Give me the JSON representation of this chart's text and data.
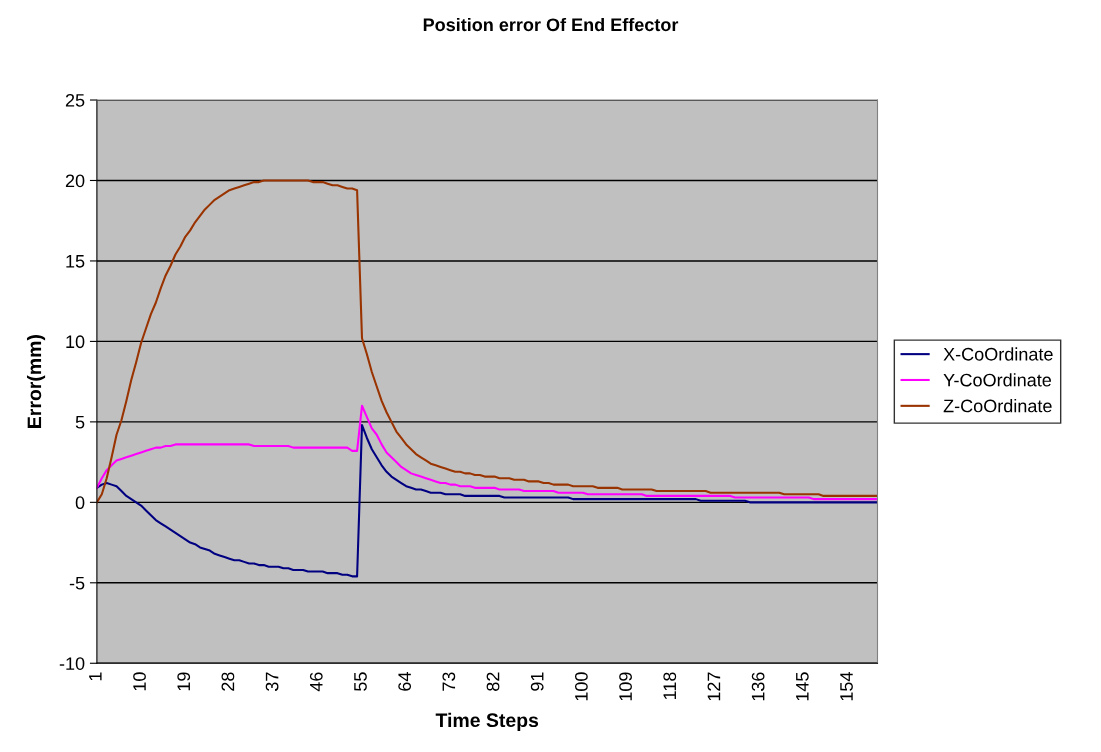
{
  "chart_data": {
    "type": "line",
    "title": "Position error Of End Effector",
    "xlabel": "Time Steps",
    "ylabel": "Error(mm)",
    "categories": [
      "1",
      null,
      null,
      null,
      null,
      null,
      null,
      null,
      null,
      "10",
      null,
      null,
      null,
      null,
      null,
      null,
      null,
      null,
      "19",
      null,
      null,
      null,
      null,
      null,
      null,
      null,
      null,
      "28",
      null,
      null,
      null,
      null,
      null,
      null,
      null,
      null,
      "37",
      null,
      null,
      null,
      null,
      null,
      null,
      null,
      null,
      "46",
      null,
      null,
      null,
      null,
      null,
      null,
      null,
      null,
      "55",
      null,
      null,
      null,
      null,
      null,
      null,
      null,
      null,
      "64",
      null,
      null,
      null,
      null,
      null,
      null,
      null,
      null,
      "73",
      null,
      null,
      null,
      null,
      null,
      null,
      null,
      null,
      "82",
      null,
      null,
      null,
      null,
      null,
      null,
      null,
      null,
      "91",
      null,
      null,
      null,
      null,
      null,
      null,
      null,
      null,
      "100",
      null,
      null,
      null,
      null,
      null,
      null,
      null,
      null,
      "109",
      null,
      null,
      null,
      null,
      null,
      null,
      null,
      null,
      "118",
      null,
      null,
      null,
      null,
      null,
      null,
      null,
      null,
      "127",
      null,
      null,
      null,
      null,
      null,
      null,
      null,
      null,
      "136",
      null,
      null,
      null,
      null,
      null,
      null,
      null,
      null,
      "145",
      null,
      null,
      null,
      null,
      null,
      null,
      null,
      null,
      "154",
      null,
      null,
      null,
      null,
      null,
      null
    ],
    "series": [
      {
        "name": "X-CoOrdinate",
        "color": "#000080",
        "values": [
          0.9,
          1.1,
          1.2,
          1.1,
          1.0,
          0.7,
          0.4,
          0.2,
          0,
          -0.2,
          -0.5,
          -0.8,
          -1.1,
          -1.3,
          -1.5,
          -1.7,
          -1.9,
          -2.1,
          -2.3,
          -2.5,
          -2.6,
          -2.8,
          -2.9,
          -3.0,
          -3.2,
          -3.3,
          -3.4,
          -3.5,
          -3.6,
          -3.6,
          -3.7,
          -3.8,
          -3.8,
          -3.9,
          -3.9,
          -4.0,
          -4.0,
          -4.0,
          -4.1,
          -4.1,
          -4.2,
          -4.2,
          -4.2,
          -4.3,
          -4.3,
          -4.3,
          -4.3,
          -4.4,
          -4.4,
          -4.4,
          -4.5,
          -4.5,
          -4.6,
          -4.6,
          4.8,
          4.0,
          3.3,
          2.8,
          2.3,
          1.9,
          1.6,
          1.4,
          1.2,
          1.0,
          0.9,
          0.8,
          0.8,
          0.7,
          0.6,
          0.6,
          0.6,
          0.5,
          0.5,
          0.5,
          0.5,
          0.4,
          0.4,
          0.4,
          0.4,
          0.4,
          0.4,
          0.4,
          0.4,
          0.3,
          0.3,
          0.3,
          0.3,
          0.3,
          0.3,
          0.3,
          0.3,
          0.3,
          0.3,
          0.3,
          0.3,
          0.3,
          0.3,
          0.2,
          0.2,
          0.2,
          0.2,
          0.2,
          0.2,
          0.2,
          0.2,
          0.2,
          0.2,
          0.2,
          0.2,
          0.2,
          0.2,
          0.2,
          0.2,
          0.2,
          0.2,
          0.2,
          0.2,
          0.2,
          0.2,
          0.2,
          0.2,
          0.2,
          0.2,
          0.1,
          0.1,
          0.1,
          0.1,
          0.1,
          0.1,
          0.1,
          0.1,
          0.1,
          0.1,
          0,
          0,
          0,
          0,
          0,
          0,
          0,
          0,
          0,
          0,
          0,
          0,
          0,
          0,
          0,
          0,
          0,
          0,
          0,
          0,
          0,
          0,
          0,
          0,
          0,
          0,
          0
        ]
      },
      {
        "name": "Y-CoOrdinate",
        "color": "#ff00ff",
        "values": [
          0.9,
          1.5,
          2.0,
          2.3,
          2.6,
          2.7,
          2.8,
          2.9,
          3.0,
          3.1,
          3.2,
          3.3,
          3.4,
          3.4,
          3.5,
          3.5,
          3.6,
          3.6,
          3.6,
          3.6,
          3.6,
          3.6,
          3.6,
          3.6,
          3.6,
          3.6,
          3.6,
          3.6,
          3.6,
          3.6,
          3.6,
          3.6,
          3.5,
          3.5,
          3.5,
          3.5,
          3.5,
          3.5,
          3.5,
          3.5,
          3.4,
          3.4,
          3.4,
          3.4,
          3.4,
          3.4,
          3.4,
          3.4,
          3.4,
          3.4,
          3.4,
          3.4,
          3.2,
          3.2,
          6.0,
          5.3,
          4.6,
          4.2,
          3.6,
          3.1,
          2.8,
          2.5,
          2.2,
          2.0,
          1.8,
          1.7,
          1.6,
          1.5,
          1.4,
          1.3,
          1.2,
          1.2,
          1.1,
          1.1,
          1.0,
          1.0,
          1.0,
          0.9,
          0.9,
          0.9,
          0.9,
          0.9,
          0.8,
          0.8,
          0.8,
          0.8,
          0.8,
          0.7,
          0.7,
          0.7,
          0.7,
          0.7,
          0.7,
          0.7,
          0.6,
          0.6,
          0.6,
          0.6,
          0.6,
          0.6,
          0.5,
          0.5,
          0.5,
          0.5,
          0.5,
          0.5,
          0.5,
          0.5,
          0.5,
          0.5,
          0.5,
          0.5,
          0.4,
          0.4,
          0.4,
          0.4,
          0.4,
          0.4,
          0.4,
          0.4,
          0.4,
          0.4,
          0.4,
          0.4,
          0.4,
          0.4,
          0.4,
          0.4,
          0.4,
          0.4,
          0.3,
          0.3,
          0.3,
          0.3,
          0.3,
          0.3,
          0.3,
          0.3,
          0.3,
          0.3,
          0.3,
          0.3,
          0.3,
          0.3,
          0.3,
          0.3,
          0.2,
          0.2,
          0.2,
          0.2,
          0.2,
          0.2,
          0.2,
          0.2,
          0.2,
          0.2,
          0.2,
          0.2,
          0.2,
          0.2
        ]
      },
      {
        "name": "Z-CoOrdinate",
        "color": "#993300",
        "values": [
          0,
          0.5,
          1.5,
          2.8,
          4.2,
          5.1,
          6.3,
          7.6,
          8.7,
          9.9,
          10.8,
          11.7,
          12.4,
          13.3,
          14.1,
          14.7,
          15.4,
          15.9,
          16.5,
          16.9,
          17.4,
          17.8,
          18.2,
          18.5,
          18.8,
          19.0,
          19.2,
          19.4,
          19.5,
          19.6,
          19.7,
          19.8,
          19.9,
          19.9,
          20,
          20,
          20,
          20,
          20,
          20,
          20,
          20,
          20,
          20,
          19.9,
          19.9,
          19.9,
          19.8,
          19.7,
          19.7,
          19.6,
          19.5,
          19.5,
          19.4,
          10.2,
          9.2,
          8.1,
          7.2,
          6.3,
          5.6,
          5.0,
          4.4,
          4.0,
          3.6,
          3.3,
          3.0,
          2.8,
          2.6,
          2.4,
          2.3,
          2.2,
          2.1,
          2.0,
          1.9,
          1.9,
          1.8,
          1.8,
          1.7,
          1.7,
          1.6,
          1.6,
          1.6,
          1.5,
          1.5,
          1.5,
          1.4,
          1.4,
          1.4,
          1.3,
          1.3,
          1.3,
          1.2,
          1.2,
          1.1,
          1.1,
          1.1,
          1.1,
          1.0,
          1.0,
          1.0,
          1.0,
          1.0,
          0.9,
          0.9,
          0.9,
          0.9,
          0.9,
          0.8,
          0.8,
          0.8,
          0.8,
          0.8,
          0.8,
          0.8,
          0.7,
          0.7,
          0.7,
          0.7,
          0.7,
          0.7,
          0.7,
          0.7,
          0.7,
          0.7,
          0.7,
          0.6,
          0.6,
          0.6,
          0.6,
          0.6,
          0.6,
          0.6,
          0.6,
          0.6,
          0.6,
          0.6,
          0.6,
          0.6,
          0.6,
          0.6,
          0.5,
          0.5,
          0.5,
          0.5,
          0.5,
          0.5,
          0.5,
          0.5,
          0.4,
          0.4,
          0.4,
          0.4,
          0.4,
          0.4,
          0.4,
          0.4,
          0.4,
          0.4,
          0.4,
          0.4
        ]
      }
    ],
    "ylim": [
      -10,
      25
    ],
    "yticks": [
      -10,
      -5,
      0,
      5,
      10,
      15,
      20,
      25
    ],
    "grid": "y",
    "legend": "right",
    "marker": "none",
    "line_style": "solid"
  }
}
